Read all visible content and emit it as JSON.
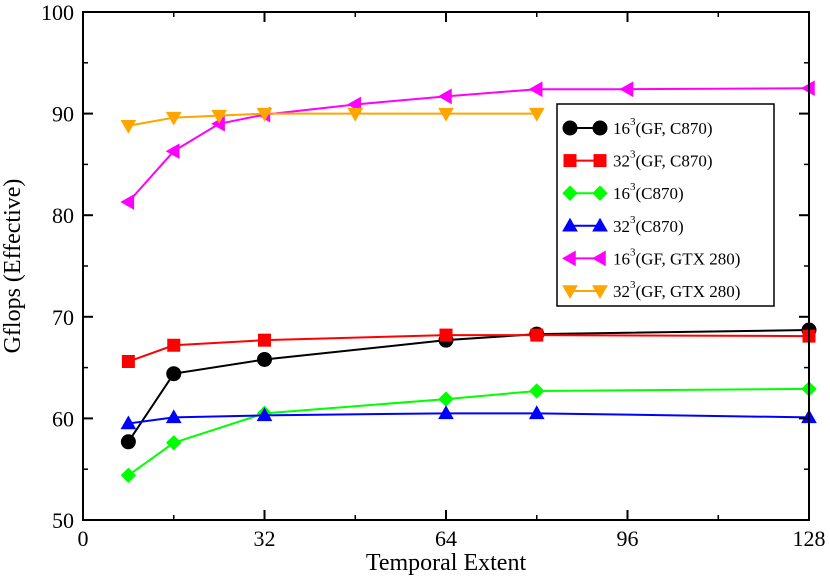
{
  "chart_data": {
    "type": "line",
    "title": "",
    "xlabel": "Temporal Extent",
    "ylabel": "Gflops (Effective)",
    "xlim": [
      0,
      128
    ],
    "ylim": [
      50,
      100
    ],
    "xticks": [
      0,
      32,
      64,
      96,
      128
    ],
    "yticks": [
      50,
      60,
      70,
      80,
      90,
      100
    ],
    "xtick_labels": [
      "0",
      "32",
      "64",
      "96",
      "128"
    ],
    "ytick_labels": [
      "50",
      "60",
      "70",
      "80",
      "90",
      "100"
    ],
    "grid": false,
    "legend_position": "top-right",
    "series": [
      {
        "name": "16^3(GF, C870)",
        "legend_base": "16",
        "legend_sup": "3",
        "legend_rest": "(GF, C870)",
        "color": "#000000",
        "marker": "circle",
        "x": [
          8,
          16,
          32,
          64,
          80,
          128
        ],
        "y": [
          57.7,
          64.4,
          65.8,
          67.7,
          68.3,
          68.7
        ]
      },
      {
        "name": "32^3(GF, C870)",
        "legend_base": "32",
        "legend_sup": "3",
        "legend_rest": "(GF, C870)",
        "color": "#ff0000",
        "marker": "square",
        "x": [
          8,
          16,
          32,
          64,
          80,
          128
        ],
        "y": [
          65.6,
          67.2,
          67.7,
          68.2,
          68.2,
          68.1
        ]
      },
      {
        "name": "16^3(C870)",
        "legend_base": "16",
        "legend_sup": "3",
        "legend_rest": "(C870)",
        "color": "#00ff00",
        "marker": "diamond",
        "x": [
          8,
          16,
          32,
          64,
          80,
          128
        ],
        "y": [
          54.4,
          57.6,
          60.5,
          61.9,
          62.7,
          62.9
        ]
      },
      {
        "name": "32^3(C870)",
        "legend_base": "32",
        "legend_sup": "3",
        "legend_rest": "(C870)",
        "color": "#0000ff",
        "marker": "triangle-up",
        "x": [
          8,
          16,
          32,
          64,
          80,
          128
        ],
        "y": [
          59.5,
          60.1,
          60.3,
          60.5,
          60.5,
          60.1
        ]
      },
      {
        "name": "16^3(GF, GTX 280)",
        "legend_base": "16",
        "legend_sup": "3",
        "legend_rest": "(GF, GTX 280)",
        "color": "#ff00ff",
        "marker": "triangle-left",
        "x": [
          8,
          16,
          24,
          32,
          48,
          64,
          80,
          96,
          128
        ],
        "y": [
          81.3,
          86.3,
          89.0,
          89.9,
          90.9,
          91.7,
          92.4,
          92.4,
          92.5
        ]
      },
      {
        "name": "32^3(GF, GTX 280)",
        "legend_base": "32",
        "legend_sup": "3",
        "legend_rest": "(GF, GTX 280)",
        "color": "#ffa500",
        "marker": "triangle-down",
        "x": [
          8,
          16,
          24,
          32,
          48,
          64,
          80
        ],
        "y": [
          88.8,
          89.6,
          89.8,
          90.0,
          90.0,
          90.0,
          90.0
        ]
      }
    ]
  }
}
